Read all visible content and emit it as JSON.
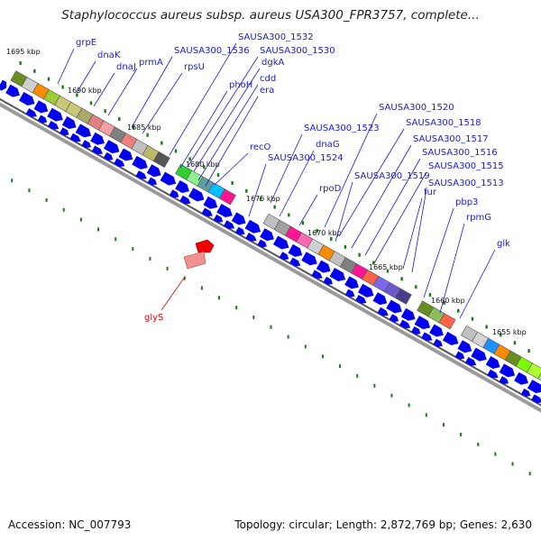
{
  "title": "Staphylococcus aureus subsp. aureus USA300_FPR3757, complete...",
  "footer": {
    "accession": "Accession: NC_007793",
    "summary": "Topology: circular; Length: 2,872,769 bp; Genes: 2,630"
  },
  "colors": {
    "backbone": "#7a7a7a",
    "cds_arrow": "#0000ee",
    "label_line_blue": "#1a1acc",
    "label_line_red": "#dd0000",
    "tick": "#1a7a1a"
  },
  "kbp_ticks": [
    "1695 kbp",
    "1690 kbp",
    "1685 kbp",
    "1680 kbp",
    "1675 kbp",
    "1670 kbp",
    "1665 kbp",
    "1660 kbp",
    "1655 kbp"
  ],
  "gene_labels": [
    "grpE",
    "dnaK",
    "dnaJ",
    "prmA",
    "SAUSA300_1536",
    "rpsU",
    "SAUSA300_1532",
    "SAUSA300_1530",
    "dgkA",
    "phoH",
    "cdd",
    "era",
    "recO",
    "SAUSA300_1523",
    "dnaG",
    "SAUSA300_1524",
    "rpoD",
    "SAUSA300_1520",
    "SAUSA300_1518",
    "SAUSA300_1517",
    "SAUSA300_1516",
    "SAUSA300_1519",
    "SAUSA300_1515",
    "fur",
    "SAUSA300_1513",
    "pbp3",
    "rpmG",
    "glk"
  ],
  "rna_labels": [
    "glyS"
  ]
}
